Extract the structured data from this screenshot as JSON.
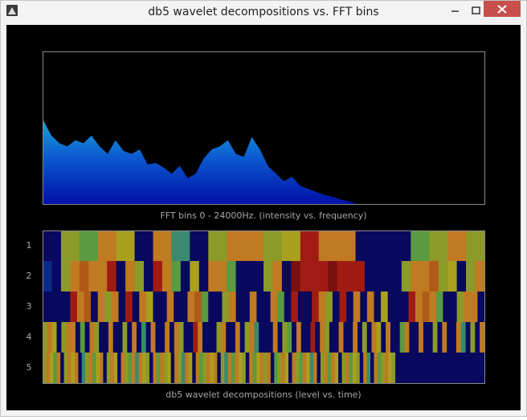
{
  "window": {
    "title": "db5 wavelet decompositions vs. FFT bins"
  },
  "fft": {
    "caption": "FFT bins 0 - 24000Hz. (intensity vs. frequency)",
    "spectrum": [
      0.55,
      0.45,
      0.4,
      0.38,
      0.42,
      0.4,
      0.45,
      0.38,
      0.33,
      0.42,
      0.35,
      0.33,
      0.36,
      0.26,
      0.27,
      0.24,
      0.2,
      0.25,
      0.17,
      0.2,
      0.3,
      0.36,
      0.38,
      0.42,
      0.33,
      0.31,
      0.44,
      0.36,
      0.25,
      0.2,
      0.15,
      0.18,
      0.12,
      0.1,
      0.08,
      0.06,
      0.05,
      0.03,
      0.02,
      0,
      0,
      0,
      0,
      0,
      0,
      0,
      0,
      0,
      0,
      0,
      0,
      0,
      0,
      0,
      0,
      0
    ]
  },
  "wavelet": {
    "caption": "db5 wavelet decompositions (level vs. time)",
    "levels": [
      "1",
      "2",
      "3",
      "4",
      "5"
    ],
    "palette": {
      "N": "#08085e",
      "B": "#0a2a8a",
      "O": "#8c9a28",
      "Y": "#a8a01e",
      "A": "#c07a22",
      "R": "#a01c12",
      "D": "#7a1010",
      "G": "#5a9a40",
      "T": "#3a8a70",
      "M": "#b05a18"
    },
    "rows": [
      "NOGAYNATNOAAOYRAANNNGOAO",
      "BNOAMAARNAONRAGNYNAAGNNNOANDRRRDRRRNNNNOAAMOYNOA",
      "NNNNRAMNAOANRNAYNNANNAMGNNOANNANNAGNRNNRAONRNANANYNNNRAMAGNNOAAN",
      "OAYNOAANGNAONNANNONANTNANNANAONNRANNNOANNANOATNNNANOGNANNRNAONNANNANONAYNANNGANNANNONANNATNONA",
      "OAYGANOAYANTOAGYANOAYNAOGATAYONAGAOYNAOTAYNAGOAYANOTAGAYONAGYAOANGOAYNAOGAYTANOAGAYNOAGYONATNAGOAYONNNNNNNNNNNNNNNNNNNNNNNNN"
    ]
  }
}
